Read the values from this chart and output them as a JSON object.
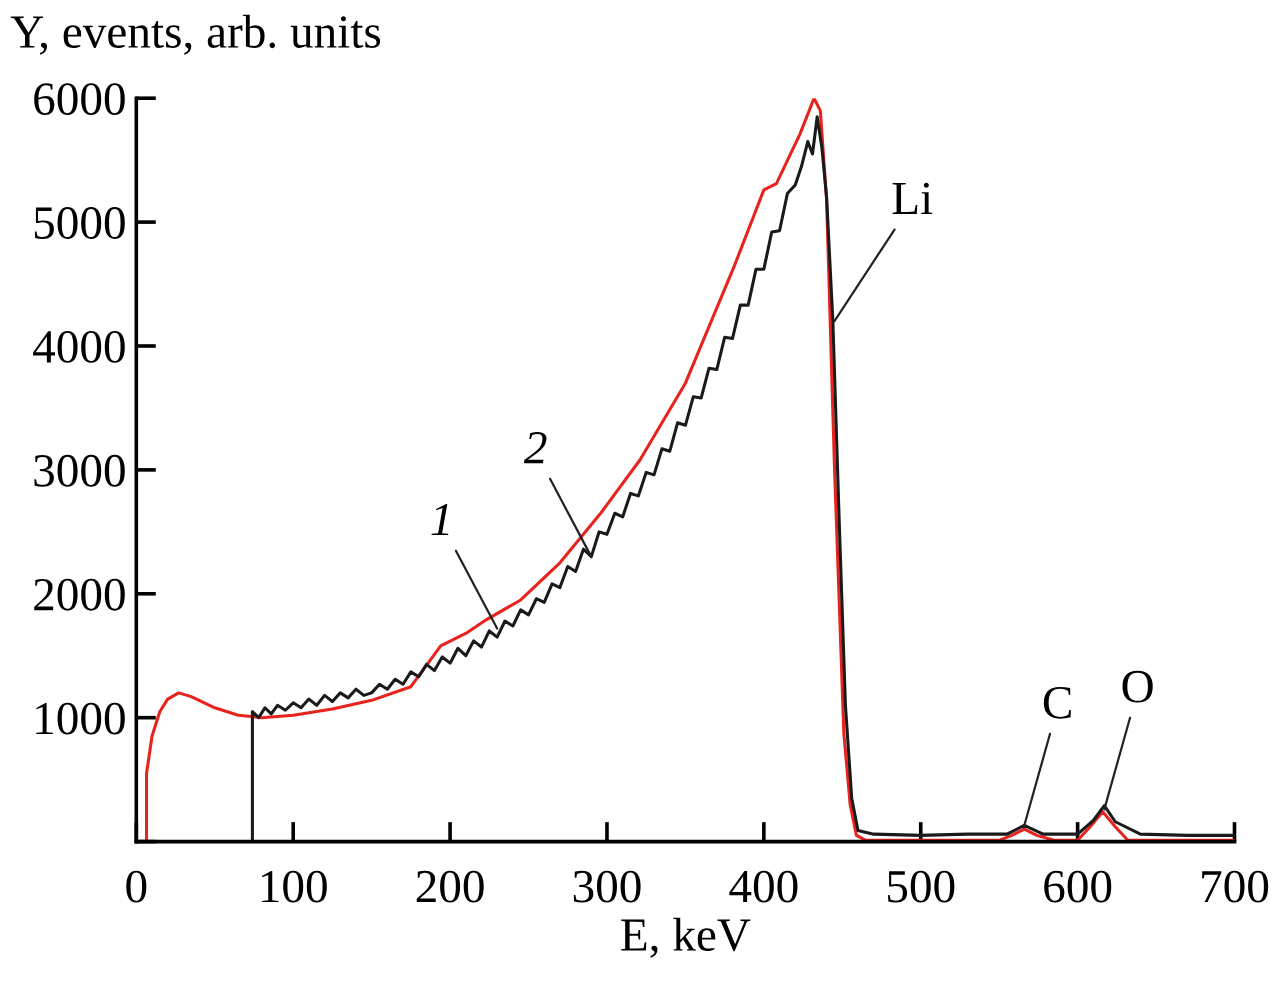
{
  "chart_data": {
    "type": "line",
    "xlabel": "E, keV",
    "ylabel": "Y, events, arb. units",
    "xlim": [
      0,
      700
    ],
    "ylim": [
      0,
      6000
    ],
    "xticks": [
      0,
      100,
      200,
      300,
      400,
      500,
      600,
      700
    ],
    "yticks": [
      {
        "value": 0,
        "label": null
      },
      1000,
      2000,
      3000,
      4000,
      5000,
      6000
    ],
    "grid": false,
    "marker": "none",
    "line_style": "solid",
    "series": [
      {
        "color": "#e8231e",
        "x": [
          6.5,
          6.5,
          10,
          15,
          20,
          27,
          35,
          50,
          65,
          80,
          100,
          125,
          150,
          175,
          194,
          210,
          223,
          245,
          270,
          296,
          321,
          350,
          381,
          400,
          408,
          423,
          432,
          436,
          440,
          445,
          451,
          455,
          459,
          465,
          500,
          550,
          558,
          566,
          574,
          585,
          600,
          608,
          616,
          624,
          632,
          650,
          700
        ],
        "values": [
          0,
          550,
          850,
          1050,
          1150,
          1200,
          1170,
          1080,
          1020,
          1000,
          1020,
          1070,
          1140,
          1250,
          1580,
          1680,
          1790,
          1950,
          2250,
          2650,
          3080,
          3700,
          4640,
          5260,
          5310,
          5710,
          6000,
          5900,
          5180,
          3030,
          870,
          300,
          50,
          10,
          10,
          10,
          50,
          100,
          50,
          10,
          10,
          120,
          240,
          120,
          10,
          10,
          10
        ]
      },
      {
        "color": "#1a1a1a",
        "x": [
          74,
          74,
          78,
          82,
          86,
          90,
          95,
          100,
          105,
          110,
          115,
          120,
          125,
          130,
          135,
          140,
          145,
          150,
          155,
          160,
          165,
          170,
          175,
          180,
          185,
          190,
          195,
          200,
          205,
          210,
          215,
          220,
          225,
          230,
          235,
          240,
          245,
          250,
          255,
          260,
          265,
          270,
          275,
          280,
          285,
          290,
          295,
          300,
          305,
          310,
          315,
          320,
          325,
          330,
          335,
          340,
          345,
          350,
          355,
          360,
          365,
          370,
          375,
          380,
          385,
          390,
          395,
          400,
          405,
          410,
          415,
          420,
          424,
          428,
          431,
          434,
          437,
          440,
          444,
          448,
          452,
          456,
          460,
          470,
          500,
          530,
          555,
          566,
          578,
          600,
          610,
          617,
          624,
          640,
          670,
          700
        ],
        "values": [
          0,
          1050,
          1000,
          1080,
          1030,
          1100,
          1060,
          1120,
          1080,
          1150,
          1100,
          1180,
          1130,
          1200,
          1160,
          1230,
          1180,
          1200,
          1270,
          1230,
          1310,
          1270,
          1370,
          1330,
          1430,
          1380,
          1490,
          1440,
          1560,
          1500,
          1620,
          1570,
          1700,
          1650,
          1780,
          1740,
          1870,
          1830,
          1960,
          1930,
          2080,
          2050,
          2220,
          2180,
          2360,
          2300,
          2500,
          2480,
          2650,
          2620,
          2810,
          2790,
          2980,
          2960,
          3170,
          3150,
          3380,
          3360,
          3590,
          3580,
          3820,
          3810,
          4070,
          4060,
          4330,
          4330,
          4620,
          4620,
          4920,
          4930,
          5230,
          5300,
          5450,
          5650,
          5550,
          5850,
          5600,
          5200,
          4200,
          2600,
          1100,
          350,
          90,
          60,
          50,
          60,
          60,
          130,
          60,
          60,
          170,
          290,
          160,
          60,
          50,
          50
        ]
      }
    ],
    "annotations": [
      {
        "text": "1",
        "x": 230,
        "y": 1720
      },
      {
        "text": "2",
        "x": 290,
        "y": 2300
      },
      {
        "text": "Li",
        "x": 445,
        "y": 4200
      },
      {
        "text": "C",
        "x": 566,
        "y": 130
      },
      {
        "text": "O",
        "x": 617,
        "y": 260
      }
    ]
  }
}
